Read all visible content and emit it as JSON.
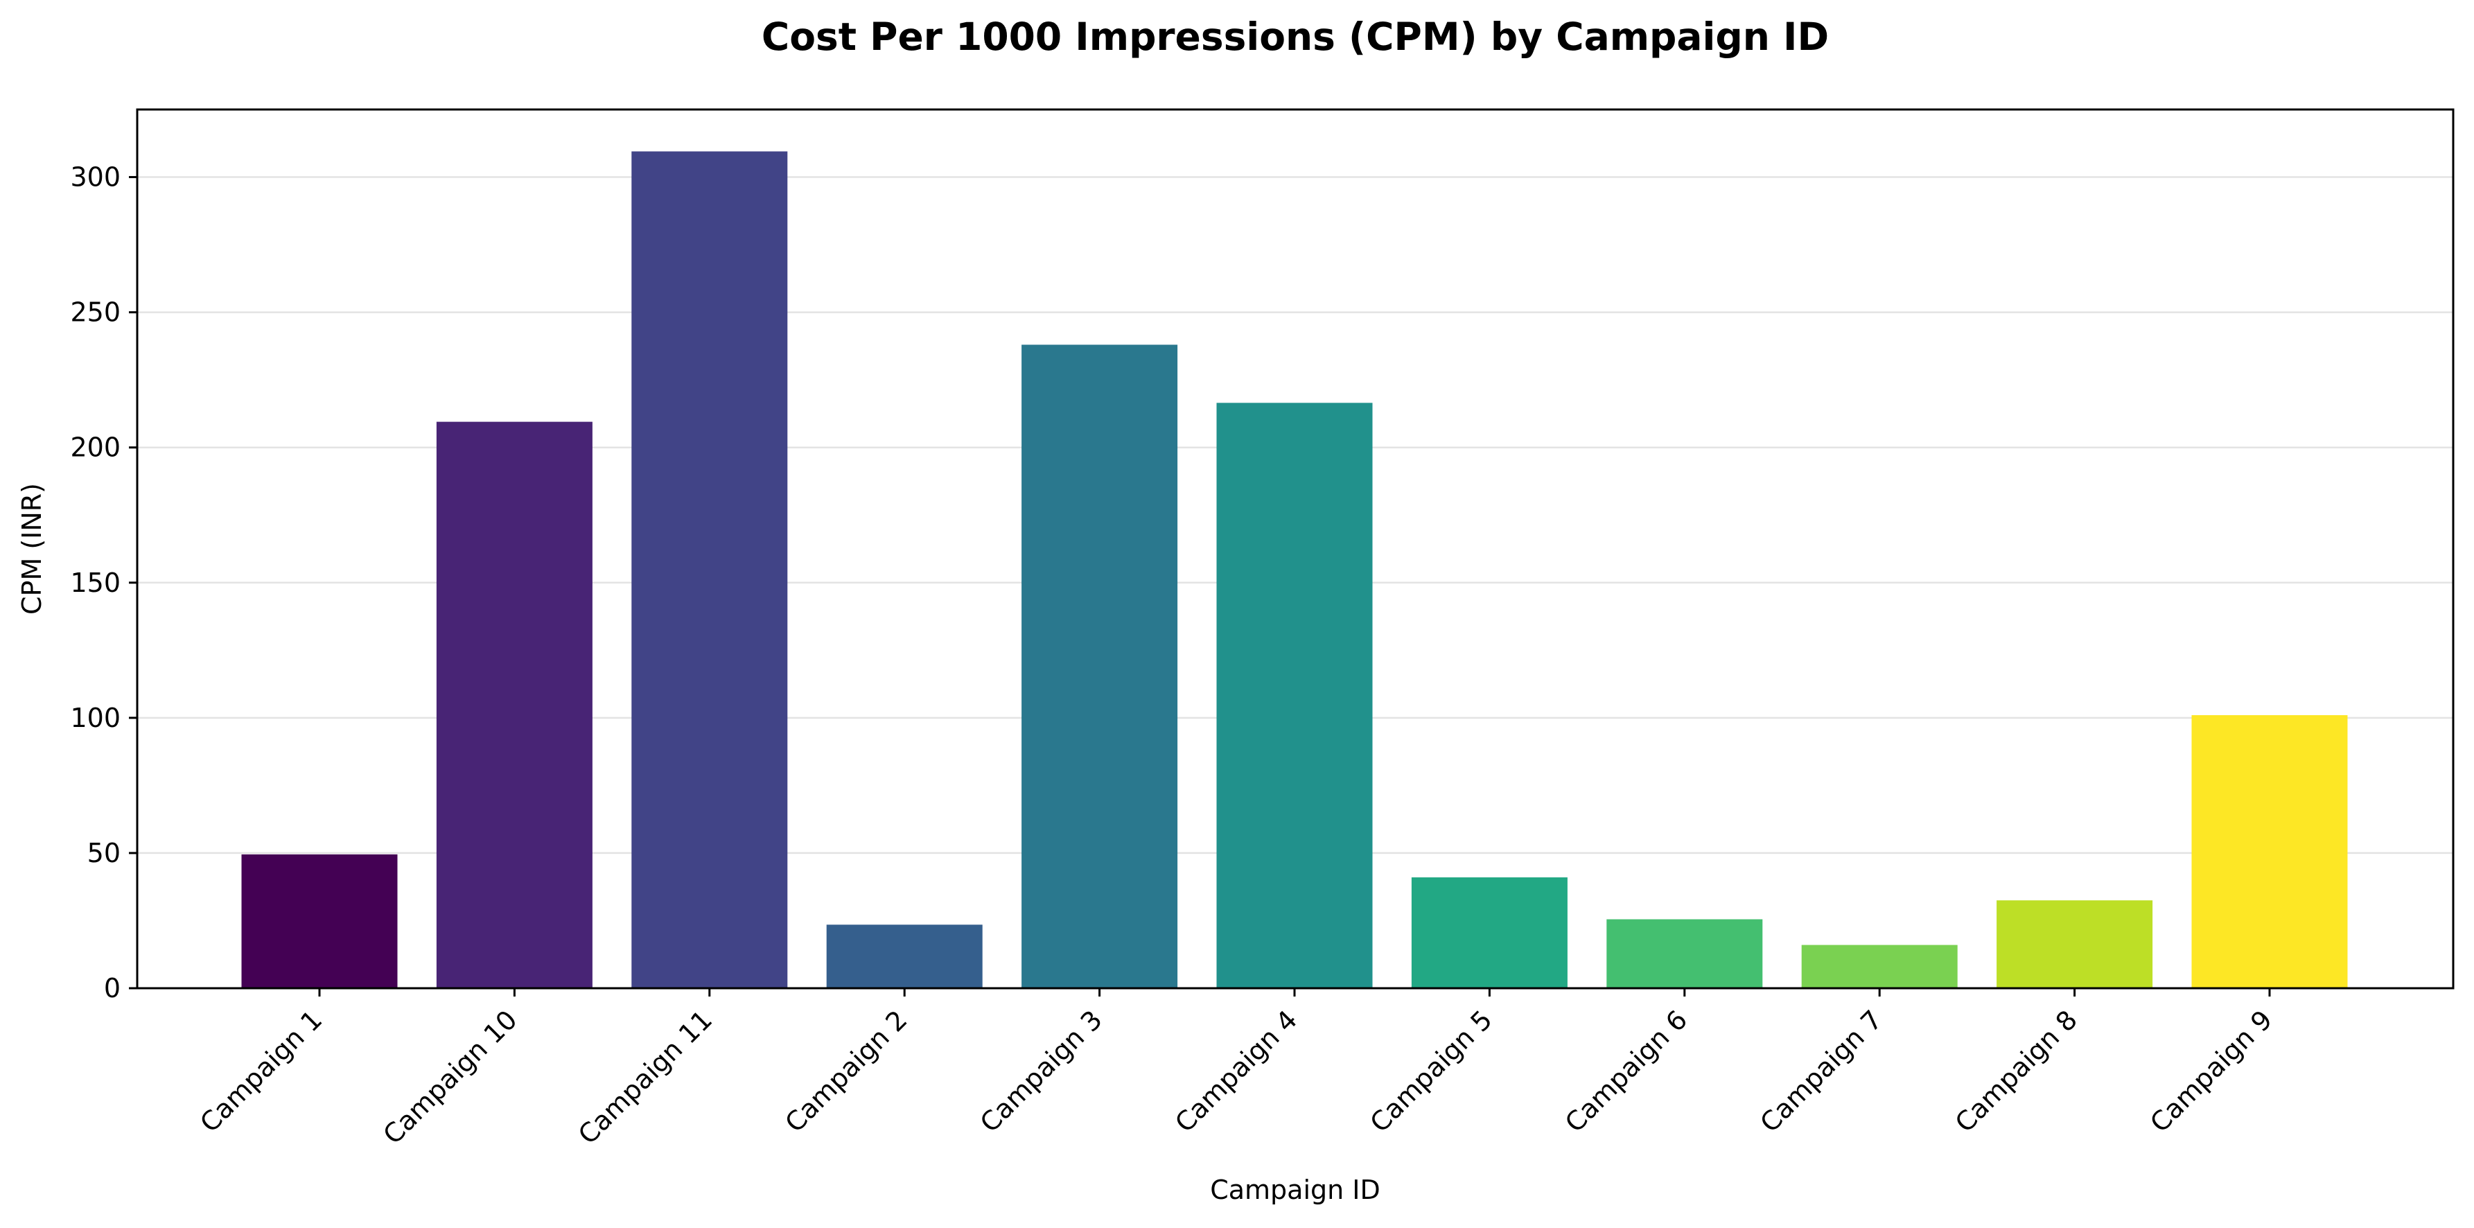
{
  "chart_data": {
    "type": "bar",
    "title": "Cost Per 1000 Impressions (CPM) by Campaign ID",
    "xlabel": "Campaign ID",
    "ylabel": "CPM (INR)",
    "ylim": [
      0,
      325
    ],
    "yticks": [
      0,
      50,
      100,
      150,
      200,
      250,
      300
    ],
    "grid": "horizontal",
    "categories": [
      "Campaign 1",
      "Campaign 10",
      "Campaign 11",
      "Campaign 2",
      "Campaign 3",
      "Campaign 4",
      "Campaign 5",
      "Campaign 6",
      "Campaign 7",
      "Campaign 8",
      "Campaign 9"
    ],
    "values": [
      49.5,
      209.5,
      309.5,
      23.5,
      238,
      216.5,
      41,
      25.5,
      16,
      32.5,
      101
    ],
    "colors": [
      "#440154",
      "#482475",
      "#414487",
      "#355f8d",
      "#2a788e",
      "#21918c",
      "#22a884",
      "#44bf70",
      "#7ad151",
      "#bddf26",
      "#fde725"
    ]
  }
}
